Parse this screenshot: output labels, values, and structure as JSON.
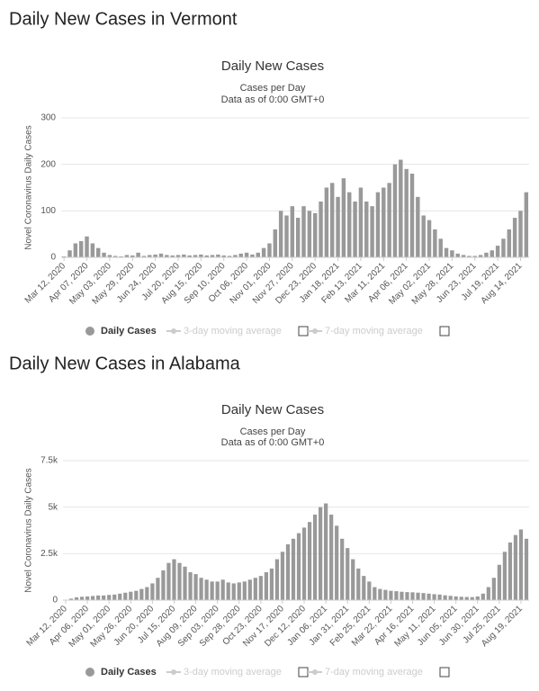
{
  "chart_data": [
    {
      "type": "bar",
      "heading": "Daily New Cases in Vermont",
      "title": "Daily New Cases",
      "subtitle": "Cases per Day",
      "note": "Data as of 0:00 GMT+0",
      "y_label": "Novel Coronavirus Daily Cases",
      "categories": [
        "Mar 12, 2020",
        null,
        null,
        null,
        "Apr 07, 2020",
        null,
        null,
        null,
        "May 03, 2020",
        null,
        null,
        null,
        "May 29, 2020",
        null,
        null,
        null,
        "Jun 24, 2020",
        null,
        null,
        null,
        "Jul 20, 2020",
        null,
        null,
        null,
        "Aug 15, 2020",
        null,
        null,
        null,
        "Sep 10, 2020",
        null,
        null,
        null,
        "Oct 06, 2020",
        null,
        null,
        null,
        "Nov 01, 2020",
        null,
        null,
        null,
        "Nov 27, 2020",
        null,
        null,
        null,
        "Dec 23, 2020",
        null,
        null,
        null,
        "Jan 18, 2021",
        null,
        null,
        null,
        "Feb 13, 2021",
        null,
        null,
        null,
        "Mar 11, 2021",
        null,
        null,
        null,
        "Apr 06, 2021",
        null,
        null,
        null,
        "May 02, 2021",
        null,
        null,
        null,
        "May 28, 2021",
        null,
        null,
        null,
        "Jun 23, 2021",
        null,
        null,
        null,
        "Jul 19, 2021",
        null,
        null,
        null,
        "Aug 14, 2021",
        null
      ],
      "series": [
        {
          "name": "Daily Cases",
          "color": "#999999",
          "values": [
            2,
            15,
            30,
            35,
            45,
            30,
            20,
            10,
            5,
            3,
            2,
            5,
            4,
            10,
            3,
            5,
            6,
            8,
            5,
            4,
            5,
            6,
            4,
            5,
            6,
            4,
            5,
            6,
            4,
            3,
            5,
            8,
            10,
            6,
            10,
            20,
            30,
            60,
            100,
            90,
            110,
            85,
            110,
            100,
            95,
            120,
            150,
            160,
            130,
            170,
            140,
            120,
            150,
            120,
            110,
            140,
            150,
            160,
            200,
            210,
            190,
            180,
            130,
            90,
            80,
            60,
            40,
            20,
            15,
            8,
            5,
            3,
            3,
            5,
            10,
            15,
            25,
            40,
            60,
            85,
            100,
            140
          ]
        }
      ],
      "disabled_series": [
        "3-day moving average",
        "7-day moving average"
      ],
      "ylim": [
        0,
        300
      ],
      "yticks": [
        0,
        100,
        200,
        300
      ],
      "grid": true
    },
    {
      "type": "bar",
      "heading": "Daily New Cases in Alabama",
      "title": "Daily New Cases",
      "subtitle": "Cases per Day",
      "note": "Data as of 0:00 GMT+0",
      "y_label": "Novel Coronavirus Daily Cases",
      "categories": [
        "Mar 12, 2020",
        null,
        null,
        null,
        "Apr 06, 2020",
        null,
        null,
        null,
        "May 01, 2020",
        null,
        null,
        null,
        "May 26, 2020",
        null,
        null,
        null,
        "Jun 20, 2020",
        null,
        null,
        null,
        "Jul 15, 2020",
        null,
        null,
        null,
        "Aug 09, 2020",
        null,
        null,
        null,
        "Sep 03, 2020",
        null,
        null,
        null,
        "Sep 28, 2020",
        null,
        null,
        null,
        "Oct 23, 2020",
        null,
        null,
        null,
        "Nov 17, 2020",
        null,
        null,
        null,
        "Dec 12, 2020",
        null,
        null,
        null,
        "Jan 06, 2021",
        null,
        null,
        null,
        "Jan 31, 2021",
        null,
        null,
        null,
        "Feb 25, 2021",
        null,
        null,
        null,
        "Mar 22, 2021",
        null,
        null,
        null,
        "Apr 16, 2021",
        null,
        null,
        null,
        "May 11, 2021",
        null,
        null,
        null,
        "Jun 05, 2021",
        null,
        null,
        null,
        "Jun 30, 2021",
        null,
        null,
        null,
        "Jul 25, 2021",
        null,
        null,
        null,
        "Aug 19, 2021",
        null
      ],
      "series": [
        {
          "name": "Daily Cases",
          "color": "#999999",
          "values": [
            10,
            80,
            150,
            180,
            200,
            220,
            250,
            250,
            280,
            300,
            350,
            400,
            450,
            500,
            600,
            700,
            900,
            1200,
            1600,
            2000,
            2200,
            2000,
            1800,
            1500,
            1400,
            1200,
            1100,
            1000,
            1000,
            1100,
            950,
            900,
            950,
            1000,
            1100,
            1200,
            1300,
            1500,
            1700,
            2200,
            2600,
            3000,
            3300,
            3600,
            3900,
            4200,
            4600,
            5000,
            5200,
            4600,
            4000,
            3300,
            2800,
            2200,
            1700,
            1300,
            1000,
            700,
            600,
            550,
            500,
            480,
            450,
            430,
            420,
            400,
            380,
            350,
            320,
            300,
            260,
            230,
            200,
            180,
            170,
            160,
            200,
            350,
            700,
            1200,
            1900,
            2600,
            3100,
            3500,
            3800,
            3300
          ]
        }
      ],
      "disabled_series": [
        "3-day moving average",
        "7-day moving average"
      ],
      "ylim": [
        0,
        7500
      ],
      "yticks": [
        0,
        {
          "value": 2500,
          "label": "2.5k"
        },
        {
          "value": 5000,
          "label": "5k"
        },
        {
          "value": 7500,
          "label": "7.5k"
        }
      ],
      "grid": true
    }
  ]
}
